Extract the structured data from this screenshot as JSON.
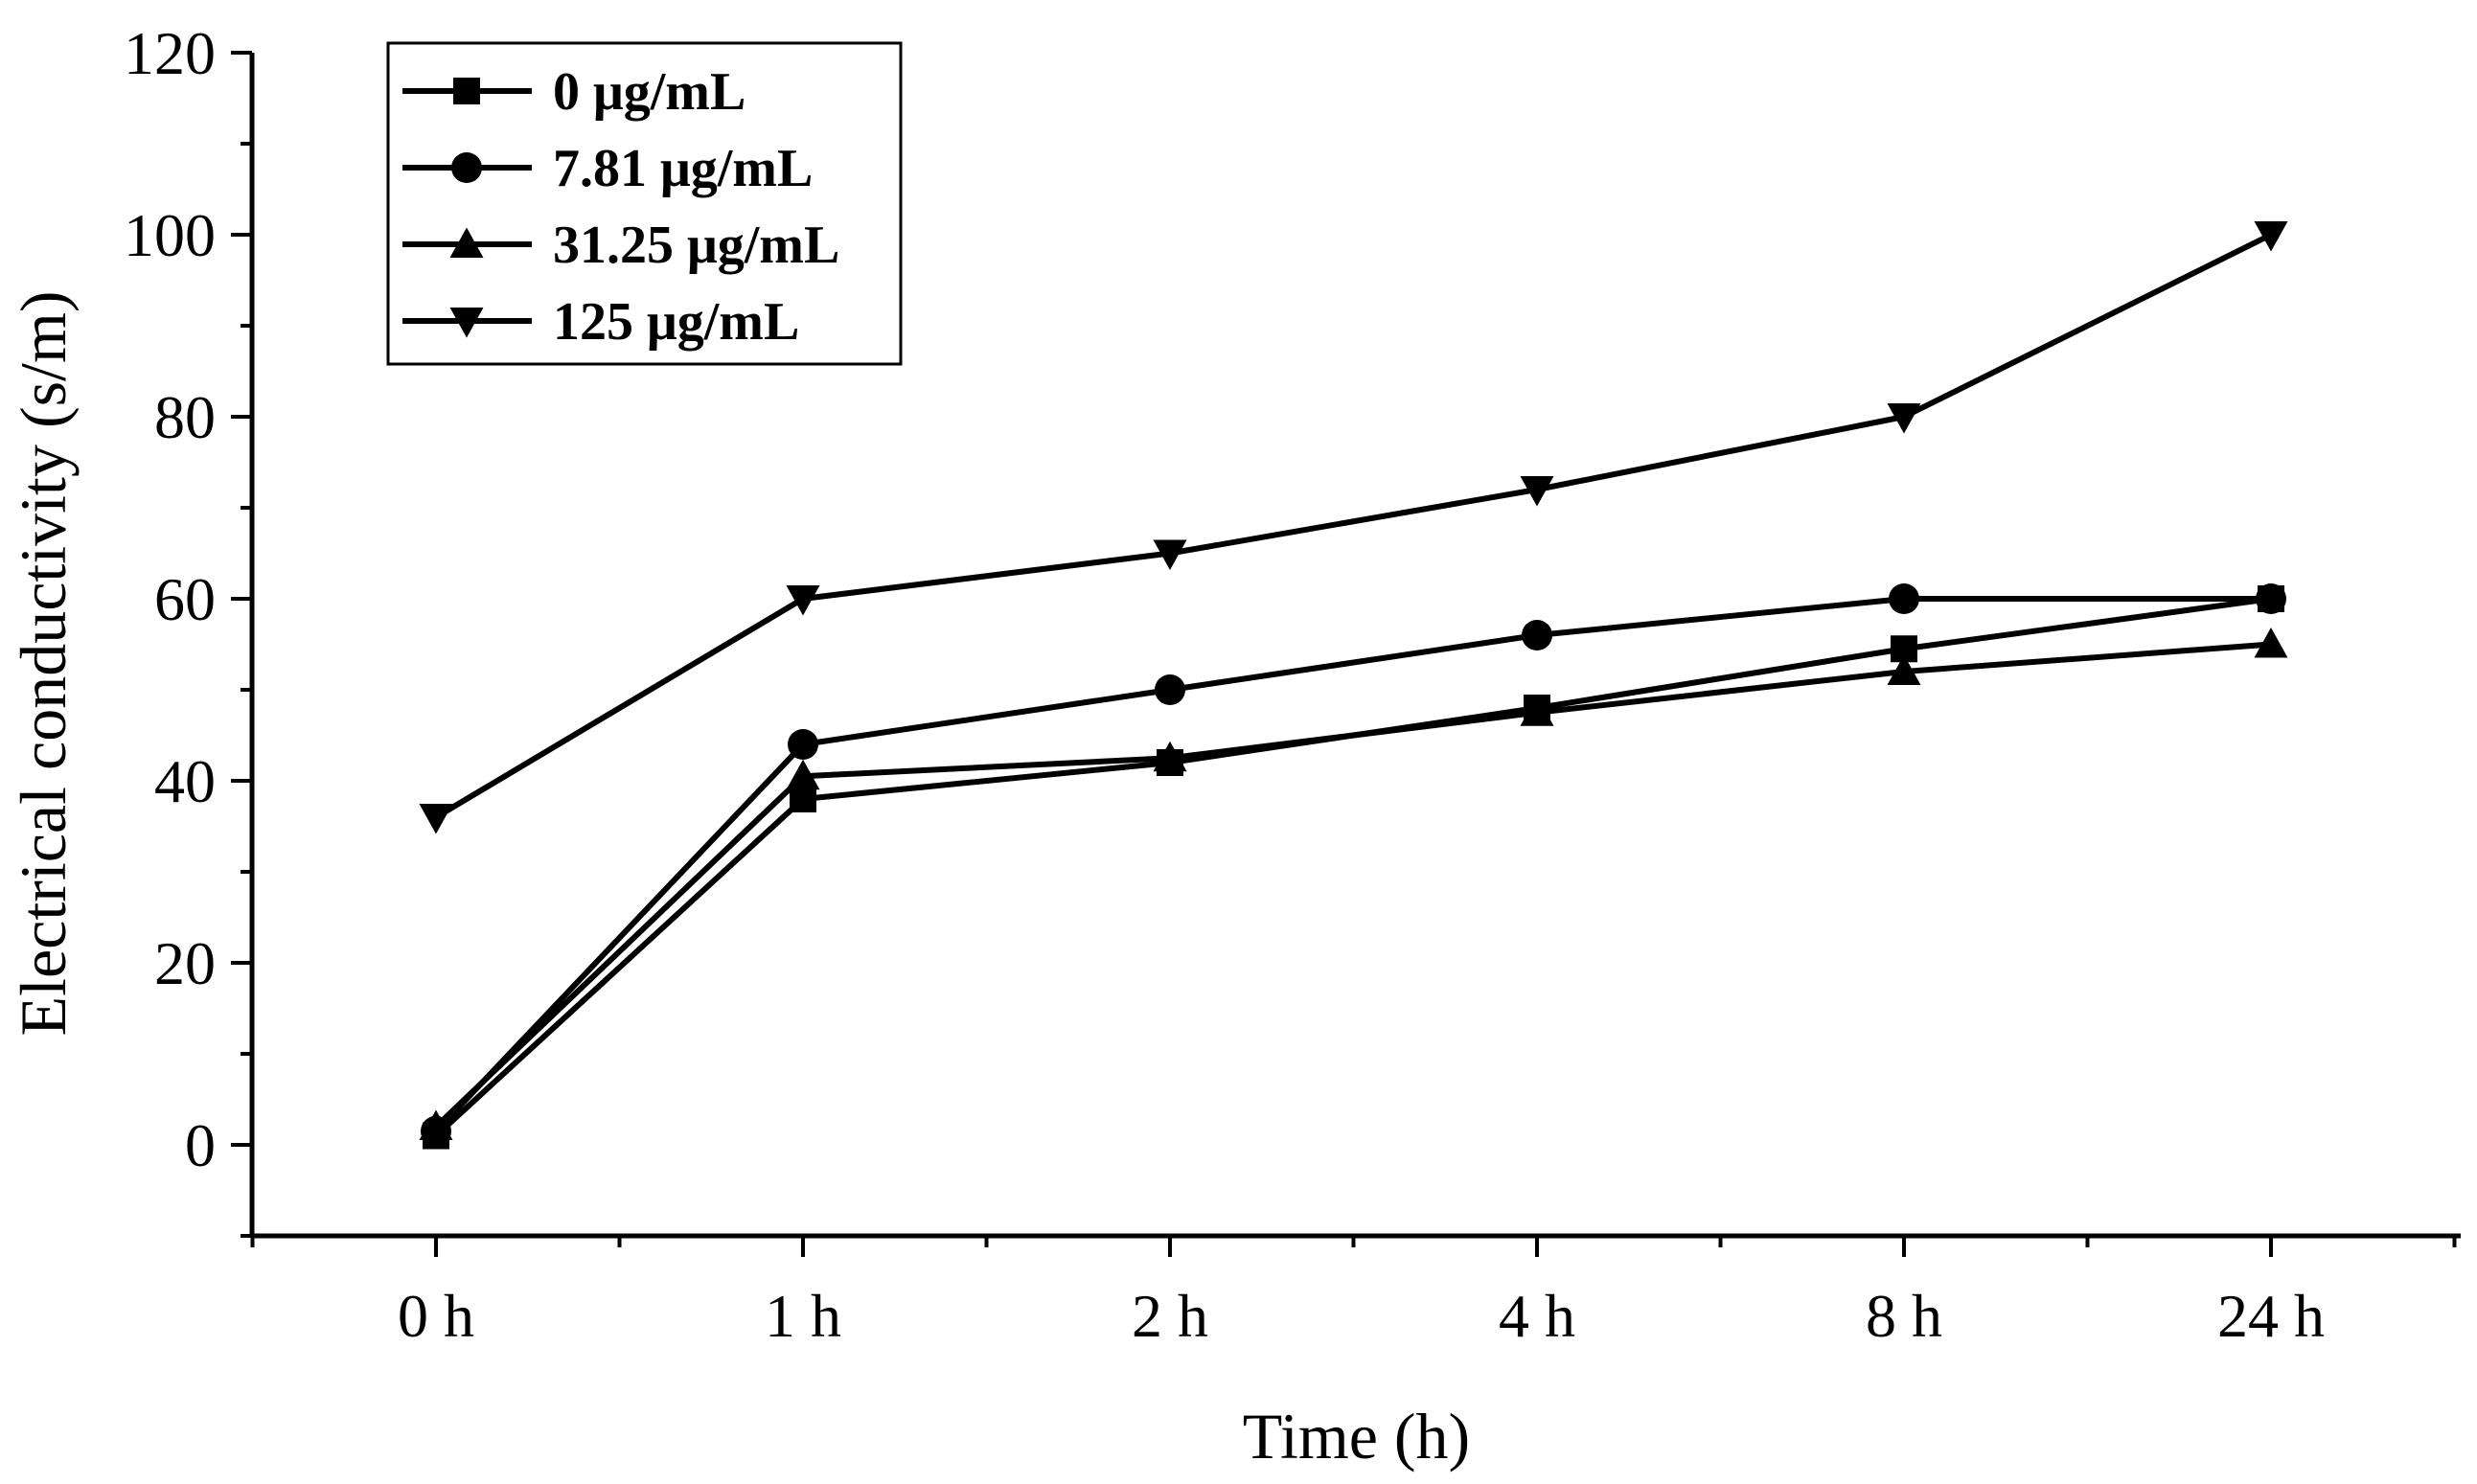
{
  "chart_data": {
    "type": "line",
    "title": "",
    "xlabel": "Time (h)",
    "ylabel": "Electrical conductivity (s/m)",
    "categories": [
      "0 h",
      "1 h",
      "2 h",
      "4 h",
      "8 h",
      "24 h"
    ],
    "ylim": [
      -10,
      120
    ],
    "yticks": [
      0,
      20,
      40,
      60,
      80,
      100,
      120
    ],
    "grid": false,
    "legend_position": "top-left",
    "series": [
      {
        "name": "0 μg/mL",
        "marker": "square",
        "values": [
          1,
          38,
          42,
          48,
          54.5,
          60
        ]
      },
      {
        "name": "7.81 μg/mL",
        "marker": "circle",
        "values": [
          1.5,
          44,
          50,
          56,
          60,
          60
        ]
      },
      {
        "name": "31.25 μg/mL",
        "marker": "triangle-up",
        "values": [
          2,
          40.5,
          42.5,
          47.5,
          52,
          55
        ]
      },
      {
        "name": "125 μg/mL",
        "marker": "triangle-down",
        "values": [
          36,
          60,
          65,
          72,
          80,
          100
        ]
      }
    ],
    "colors": {
      "line": "#000000",
      "axis": "#000000"
    }
  }
}
